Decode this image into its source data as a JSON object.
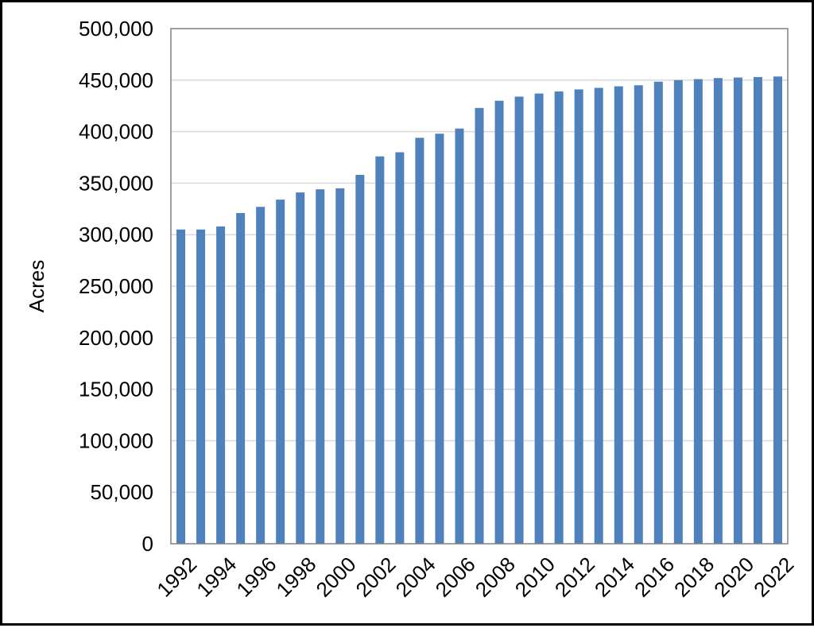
{
  "chart_data": {
    "type": "bar",
    "title": "",
    "xlabel": "",
    "ylabel": "Acres",
    "ylim": [
      0,
      500000
    ],
    "y_ticks": [
      "0",
      "50,000",
      "100,000",
      "150,000",
      "200,000",
      "250,000",
      "300,000",
      "350,000",
      "400,000",
      "450,000",
      "500,000"
    ],
    "x_tick_labels": [
      "1992",
      "1994",
      "1996",
      "1998",
      "2000",
      "2002",
      "2004",
      "2006",
      "2008",
      "2010",
      "2012",
      "2014",
      "2016",
      "2018",
      "2020",
      "2022"
    ],
    "categories": [
      "1992",
      "1993",
      "1994",
      "1995",
      "1996",
      "1997",
      "1998",
      "1999",
      "2000",
      "2001",
      "2002",
      "2003",
      "2004",
      "2005",
      "2006",
      "2007",
      "2008",
      "2009",
      "2010",
      "2011",
      "2012",
      "2013",
      "2014",
      "2015",
      "2016",
      "2017",
      "2018",
      "2019",
      "2020",
      "2021",
      "2022"
    ],
    "values": [
      305000,
      305000,
      308000,
      321000,
      327000,
      334000,
      341000,
      344000,
      345000,
      358000,
      376000,
      380000,
      394000,
      398000,
      403000,
      423000,
      430000,
      434000,
      437000,
      439000,
      441000,
      442500,
      444000,
      445000,
      448500,
      450000,
      451000,
      452000,
      452500,
      453000,
      453500
    ],
    "bar_color": "#4F81BD",
    "grid": true,
    "gridline_color": "#D9D9D9",
    "legend": "none"
  }
}
